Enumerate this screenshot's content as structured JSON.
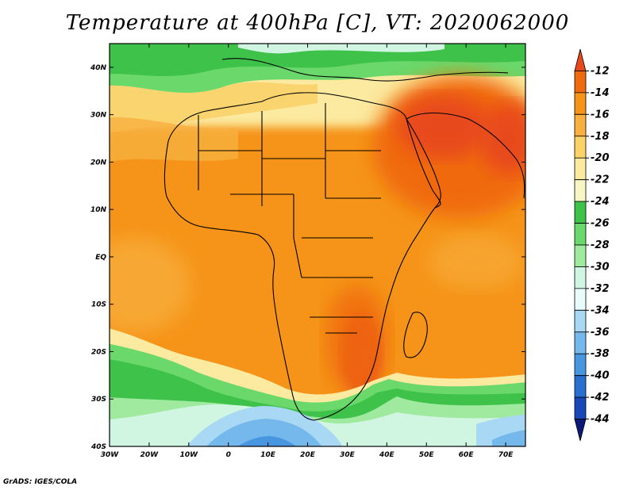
{
  "title": "Temperature at 400hPa [C], VT: 2020062000",
  "footer": "GrADS: IGES/COLA",
  "map": {
    "lat_labels": [
      "40N",
      "30N",
      "20N",
      "10N",
      "EQ",
      "10S",
      "20S",
      "30S",
      "40S"
    ],
    "lon_labels": [
      "30W",
      "20W",
      "10W",
      "0",
      "10E",
      "20E",
      "30E",
      "40E",
      "50E",
      "60E",
      "70E"
    ]
  },
  "colorbar": {
    "unit": "C",
    "levels": [
      "-12",
      "-14",
      "-16",
      "-18",
      "-20",
      "-22",
      "-24",
      "-26",
      "-28",
      "-30",
      "-32",
      "-34",
      "-36",
      "-38",
      "-40",
      "-42",
      "-44"
    ],
    "colors": [
      "#e8481e",
      "#f06a10",
      "#f59418",
      "#f8b040",
      "#fad268",
      "#fbeaa0",
      "#f8f6c4",
      "#3fc24a",
      "#6ad86a",
      "#a0eaa0",
      "#d0f6e2",
      "#e8fcfc",
      "#a8d8f4",
      "#74b8ec",
      "#4896e0",
      "#2a6ed0",
      "#1848b8",
      "#0a1878"
    ]
  }
}
